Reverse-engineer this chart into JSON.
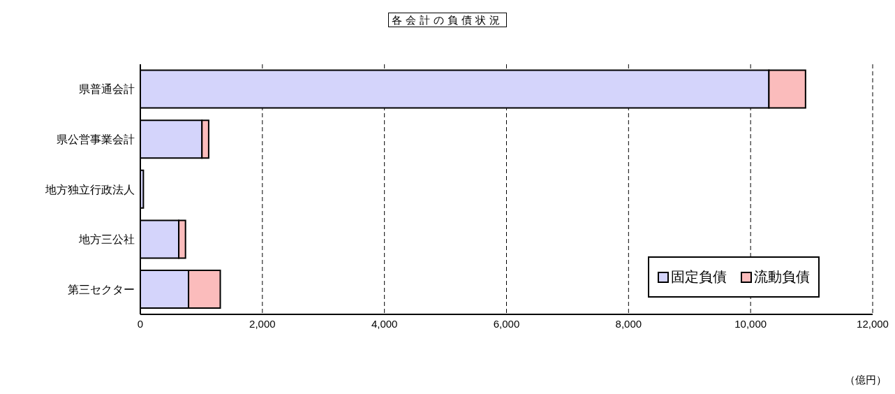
{
  "chart_data": {
    "type": "bar",
    "orientation": "horizontal",
    "stacked": true,
    "title": "各会計の負債状況",
    "categories": [
      "県普通会計",
      "県公営事業会計",
      "地方独立行政法人",
      "地方三公社",
      "第三セクター"
    ],
    "series": [
      {
        "name": "固定負債",
        "color": "#d4d4fb",
        "values": [
          10300,
          1010,
          50,
          630,
          790
        ]
      },
      {
        "name": "流動負債",
        "color": "#fbbcbc",
        "values": [
          600,
          110,
          0,
          110,
          520
        ]
      }
    ],
    "xlim": [
      0,
      12000
    ],
    "xticks": [
      {
        "value": 0,
        "label": "0"
      },
      {
        "value": 2000,
        "label": "2,000"
      },
      {
        "value": 4000,
        "label": "4,000"
      },
      {
        "value": 6000,
        "label": "6,000"
      },
      {
        "value": 8000,
        "label": "8,000"
      },
      {
        "value": 10000,
        "label": "10,000"
      },
      {
        "value": 12000,
        "label": "12,000"
      }
    ],
    "xlabel": "（億円）",
    "grid": "x",
    "legend": "bottom right"
  }
}
